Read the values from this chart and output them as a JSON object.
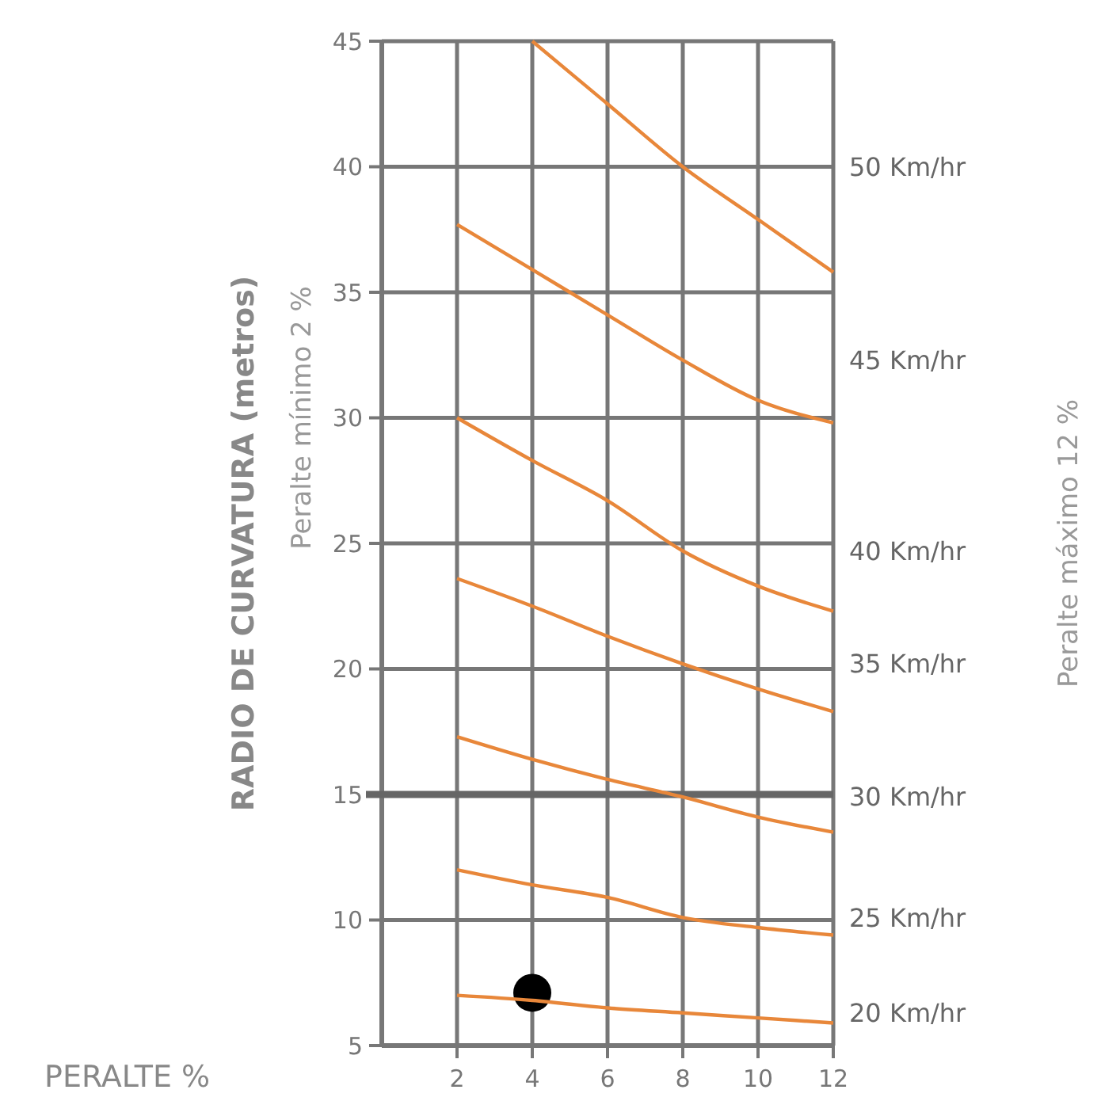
{
  "chart_data": {
    "type": "line",
    "ylabel": "RADIO DE CURVATURA (metros)",
    "xlabel": "PERALTE %",
    "annotations": [
      "Peralte mínimo 2 %",
      "Peralte máximo 12 %"
    ],
    "xlim": [
      0,
      12
    ],
    "xticks": [
      2,
      4,
      6,
      8,
      10,
      12
    ],
    "ylim": [
      5,
      45
    ],
    "yticks": [
      5,
      10,
      15,
      20,
      25,
      30,
      35,
      40,
      45
    ],
    "grid": true,
    "legend": false,
    "marker": "none",
    "line_style": "solid",
    "ref_lines": [
      {
        "axis": "y",
        "value": 15,
        "color": "#666666"
      }
    ],
    "series": [
      {
        "name": "50 Km/hr",
        "color": "#e8873a",
        "x": [
          4,
          6,
          8,
          10,
          12
        ],
        "values": [
          45,
          42.5,
          40,
          37.9,
          35.8
        ]
      },
      {
        "name": "45 Km/hr",
        "color": "#e8873a",
        "x": [
          2,
          4,
          6,
          8,
          10,
          12
        ],
        "values": [
          37.7,
          35.9,
          34.1,
          32.3,
          30.7,
          29.8
        ]
      },
      {
        "name": "40 Km/hr",
        "color": "#e8873a",
        "x": [
          2,
          4,
          6,
          8,
          10,
          12
        ],
        "values": [
          30,
          28.3,
          26.7,
          24.7,
          23.3,
          22.3
        ]
      },
      {
        "name": "35 Km/hr",
        "color": "#e8873a",
        "x": [
          2,
          4,
          6,
          8,
          10,
          12
        ],
        "values": [
          23.6,
          22.5,
          21.3,
          20.2,
          19.2,
          18.3
        ]
      },
      {
        "name": "30 Km/hr",
        "color": "#e8873a",
        "x": [
          2,
          4,
          6,
          8,
          10,
          12
        ],
        "values": [
          17.3,
          16.4,
          15.6,
          14.9,
          14.1,
          13.5
        ]
      },
      {
        "name": "25 Km/hr",
        "color": "#e8873a",
        "x": [
          2,
          4,
          6,
          8,
          10,
          12
        ],
        "values": [
          12,
          11.4,
          10.9,
          10.1,
          9.7,
          9.4
        ]
      },
      {
        "name": "20 Km/hr",
        "color": "#e8873a",
        "x": [
          2,
          4,
          6,
          8,
          10,
          12
        ],
        "values": [
          7,
          6.8,
          6.5,
          6.3,
          6.1,
          5.9
        ]
      },
      {
        "type": "scatter",
        "marker": "circle",
        "color": "#000000",
        "x": [
          4
        ],
        "values": [
          7.1
        ]
      }
    ]
  }
}
